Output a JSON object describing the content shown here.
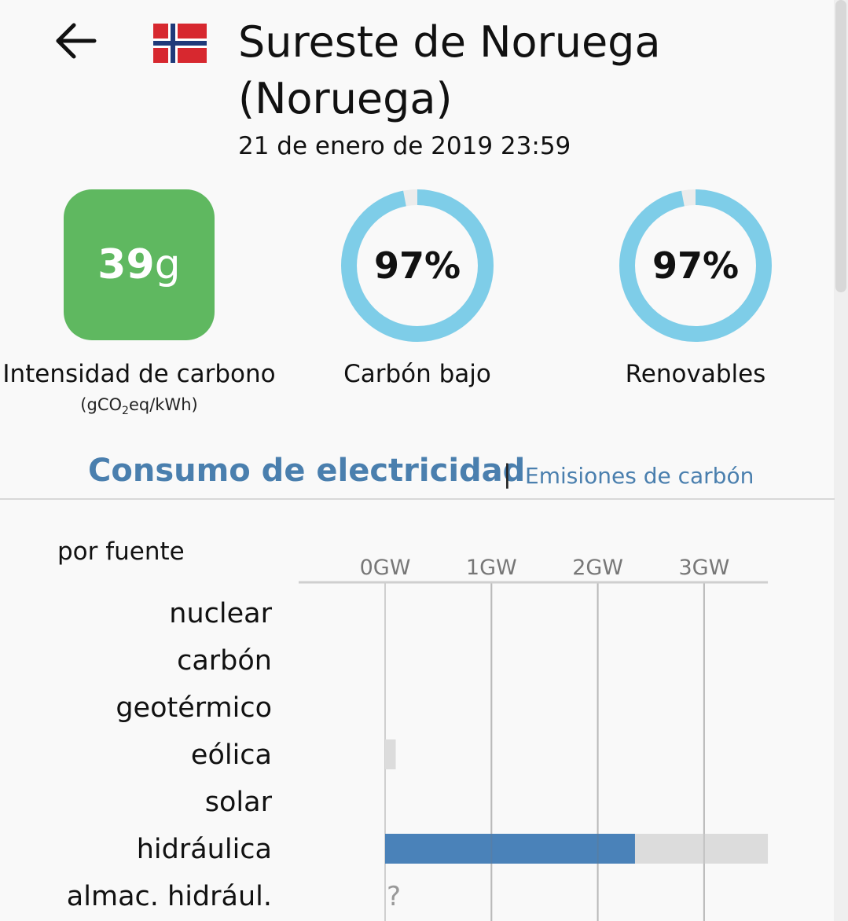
{
  "header": {
    "title": "Sureste de Noruega (Noruega)",
    "datetime": "21 de enero de 2019 23:59",
    "back_icon": "arrow-left-icon",
    "flag_icon": "norway-flag-icon"
  },
  "stats": {
    "carbon_intensity": {
      "value": "39",
      "unit_suffix": "g",
      "label": "Intensidad de carbono",
      "unit_pre": "(gCO",
      "unit_sub": "2",
      "unit_post": "eq/kWh)",
      "color": "#5fb860"
    },
    "low_carbon": {
      "value_text": "97%",
      "fraction": 0.97,
      "label": "Carbón bajo",
      "color": "#7ecde8"
    },
    "renewable": {
      "value_text": "97%",
      "fraction": 0.97,
      "label": "Renovables",
      "color": "#7ecde8"
    }
  },
  "tabs": {
    "active": "Consumo de electricidad",
    "separator": "|",
    "inactive": "Emisiones de carbón"
  },
  "chart_data": {
    "type": "bar",
    "title": "por fuente",
    "categories": [
      "nuclear",
      "carbón",
      "geotérmico",
      "eólica",
      "solar",
      "hidráulica",
      "almac. hidrául."
    ],
    "ticks": [
      "0GW",
      "1GW",
      "2GW",
      "3GW"
    ],
    "tick_values": [
      0,
      1,
      2,
      3
    ],
    "xlim": [
      -0.8,
      3.6
    ],
    "series": [
      {
        "values": [
          0,
          0,
          0,
          0,
          0,
          2.35,
          null
        ],
        "color": "#4a82b9"
      }
    ],
    "capacity": [
      0,
      0,
      0,
      0.1,
      0,
      3.6,
      null
    ],
    "capacity_color": "#dcdcdc",
    "unknown_marker": "?",
    "grid": true
  }
}
